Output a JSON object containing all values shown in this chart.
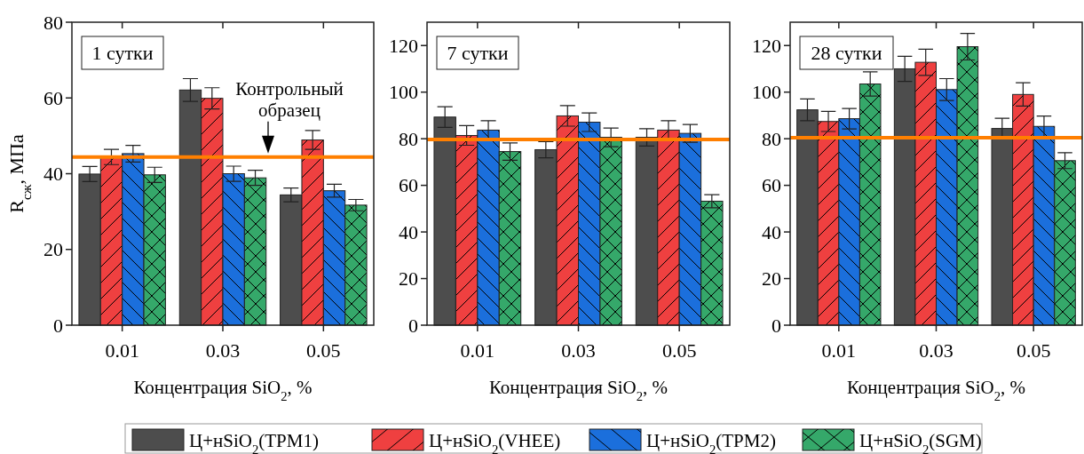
{
  "chart_data": [
    {
      "type": "bar",
      "title": "1 сутки",
      "xlabel": "Концентрация SiO$_{2}$, %",
      "ylabel": "R$_{сж}$, МПа",
      "categories": [
        "0.01",
        "0.03",
        "0.05"
      ],
      "ylim": [
        0,
        80
      ],
      "yticks": [
        0,
        20,
        40,
        60,
        80
      ],
      "legend": "bottom",
      "ref_lines": [
        {
          "axis": "y",
          "value": 44.4,
          "label": "Контрольный образец",
          "color": "#ff7f00"
        }
      ],
      "series": [
        {
          "name": "Ц+нSiO$_{2}$(TPM1)",
          "color": "#4d4d4d",
          "values": [
            39.9,
            62.1,
            34.4
          ],
          "errors": [
            2,
            3,
            1.8
          ]
        },
        {
          "name": "Ц+нSiO$_{2}$(VHEE)",
          "color": "#ef4040",
          "values": [
            44.4,
            59.9,
            48.9
          ],
          "errors": [
            2,
            2.8,
            2.5
          ]
        },
        {
          "name": "Ц+нSiO$_{2}$(TPM2)",
          "color": "#1b6fdc",
          "values": [
            45.3,
            40,
            35.5
          ],
          "errors": [
            2.2,
            2,
            1.7
          ]
        },
        {
          "name": "Ц+нSiO$_{2}$(SGM)",
          "color": "#35a86a",
          "values": [
            39.7,
            38.9,
            31.7
          ],
          "errors": [
            2,
            2,
            1.5
          ]
        }
      ]
    },
    {
      "type": "bar",
      "title": "7 сутки",
      "xlabel": "Концентрация SiO$_{2}$, %",
      "categories": [
        "0.01",
        "0.03",
        "0.05"
      ],
      "ylim": [
        0,
        130
      ],
      "yticks": [
        0,
        20,
        40,
        60,
        80,
        100,
        120
      ],
      "ref_lines": [
        {
          "axis": "y",
          "value": 79.7,
          "color": "#ff7f00"
        }
      ],
      "series": [
        {
          "color": "#4d4d4d",
          "values": [
            89.3,
            75.3,
            80.6
          ],
          "errors": [
            4.4,
            3.5,
            3.7
          ]
        },
        {
          "color": "#ef4040",
          "values": [
            81.4,
            89.8,
            83.7
          ],
          "errors": [
            4.2,
            4.4,
            4
          ]
        },
        {
          "color": "#1b6fdc",
          "values": [
            83.7,
            87.1,
            82.3
          ],
          "errors": [
            4,
            4,
            3.8
          ]
        },
        {
          "color": "#35a86a",
          "values": [
            74.5,
            80.6,
            53.2
          ],
          "errors": [
            3.7,
            4,
            2.8
          ]
        }
      ]
    },
    {
      "type": "bar",
      "title": "28 сутки",
      "xlabel": "Концентрация SiO$_{2}$, %",
      "categories": [
        "0.01",
        "0.03",
        "0.05"
      ],
      "ylim": [
        0,
        130
      ],
      "yticks": [
        0,
        20,
        40,
        60,
        80,
        100,
        120
      ],
      "ref_lines": [
        {
          "axis": "y",
          "value": 80.4,
          "color": "#ff7f00"
        }
      ],
      "series": [
        {
          "color": "#4d4d4d",
          "values": [
            92.4,
            110,
            84.4
          ],
          "errors": [
            4.7,
            5.4,
            4.4
          ]
        },
        {
          "color": "#ef4040",
          "values": [
            87.4,
            112.8,
            99
          ],
          "errors": [
            4.3,
            5.6,
            5
          ]
        },
        {
          "color": "#1b6fdc",
          "values": [
            88.6,
            101.1,
            85.3
          ],
          "errors": [
            4.4,
            4.7,
            4.4
          ]
        },
        {
          "color": "#35a86a",
          "values": [
            103.5,
            119.5,
            70.6
          ],
          "errors": [
            5.2,
            5.7,
            3.4
          ]
        }
      ]
    }
  ]
}
